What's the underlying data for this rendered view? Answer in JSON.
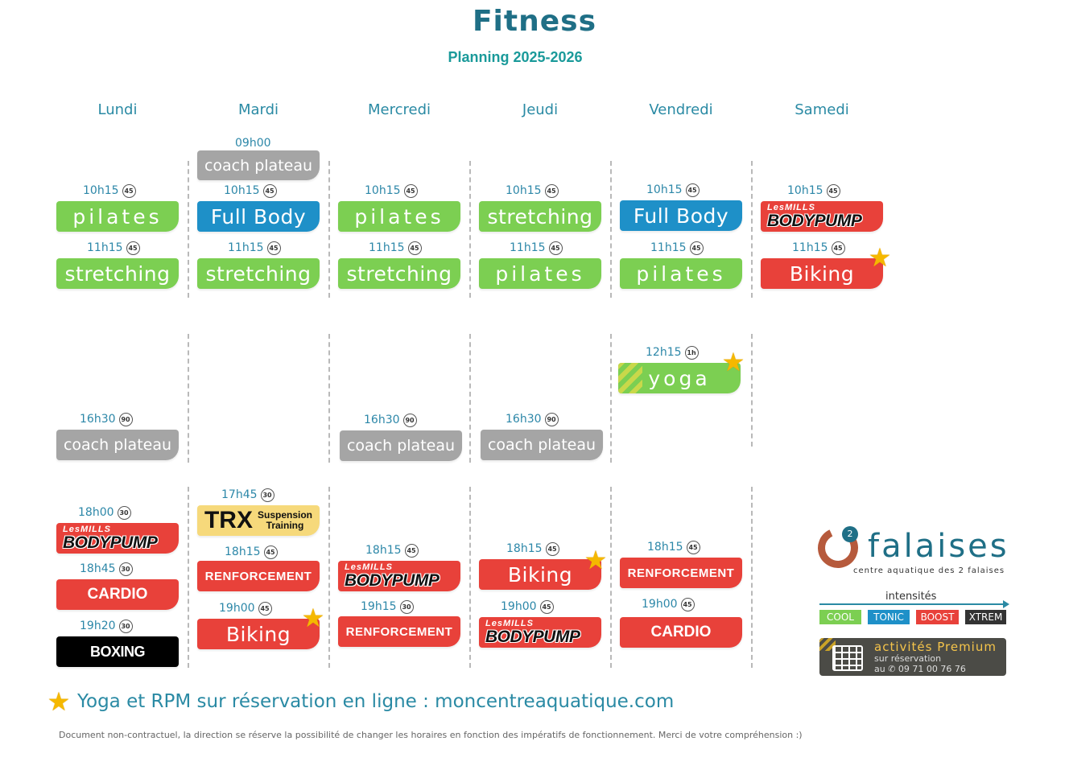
{
  "header": {
    "title": "Fitness",
    "subtitle": "Planning 2025-2026"
  },
  "days": [
    "Lundi",
    "Mardi",
    "Mercredi",
    "Jeudi",
    "Vendredi",
    "Samedi"
  ],
  "colors": {
    "cool": "#7ccf52",
    "tonic": "#1e90c8",
    "boost": "#e8413a",
    "xtrem": "#333333",
    "grey": "#a5a5a5",
    "accent": "#1f6f86",
    "star": "#f5b800"
  },
  "sessions": {
    "lun_1015": {
      "time": "10h15",
      "dur": "45",
      "name": "pilates"
    },
    "lun_1115": {
      "time": "11h15",
      "dur": "45",
      "name": "stretching"
    },
    "lun_1630": {
      "time": "16h30",
      "dur": "90",
      "name": "coach plateau"
    },
    "lun_1800": {
      "time": "18h00",
      "dur": "30",
      "brand": "LesMILLS",
      "name": "BODYPUMP"
    },
    "lun_1845": {
      "time": "18h45",
      "dur": "30",
      "name": "CARDIO"
    },
    "lun_1920": {
      "time": "19h20",
      "dur": "30",
      "name": "BOXING"
    },
    "mar_0900": {
      "time": "09h00",
      "name": "coach plateau"
    },
    "mar_1015": {
      "time": "10h15",
      "dur": "45",
      "name": "Full Body"
    },
    "mar_1115": {
      "time": "11h15",
      "dur": "45",
      "name": "stretching"
    },
    "mar_1745": {
      "time": "17h45",
      "dur": "30",
      "name": "TRX",
      "sub1": "Suspension",
      "sub2": "Training"
    },
    "mar_1815": {
      "time": "18h15",
      "dur": "45",
      "name": "RENFORCEMENT"
    },
    "mar_1900": {
      "time": "19h00",
      "dur": "45",
      "name": "Biking"
    },
    "mer_1015": {
      "time": "10h15",
      "dur": "45",
      "name": "pilates"
    },
    "mer_1115": {
      "time": "11h15",
      "dur": "45",
      "name": "stretching"
    },
    "mer_1630": {
      "time": "16h30",
      "dur": "90",
      "name": "coach plateau"
    },
    "mer_1815": {
      "time": "18h15",
      "dur": "45",
      "brand": "LesMILLS",
      "name": "BODYPUMP"
    },
    "mer_1915": {
      "time": "19h15",
      "dur": "30",
      "name": "RENFORCEMENT"
    },
    "jeu_1015": {
      "time": "10h15",
      "dur": "45",
      "name": "stretching"
    },
    "jeu_1115": {
      "time": "11h15",
      "dur": "45",
      "name": "pilates"
    },
    "jeu_1630": {
      "time": "16h30",
      "dur": "90",
      "name": "coach plateau"
    },
    "jeu_1815": {
      "time": "18h15",
      "dur": "45",
      "name": "Biking"
    },
    "jeu_1900": {
      "time": "19h00",
      "dur": "45",
      "brand": "LesMILLS",
      "name": "BODYPUMP"
    },
    "ven_1015": {
      "time": "10h15",
      "dur": "45",
      "name": "Full Body"
    },
    "ven_1115": {
      "time": "11h15",
      "dur": "45",
      "name": "pilates"
    },
    "ven_1215": {
      "time": "12h15",
      "dur": "1h",
      "name": "yoga"
    },
    "ven_1815": {
      "time": "18h15",
      "dur": "45",
      "name": "RENFORCEMENT"
    },
    "ven_1900": {
      "time": "19h00",
      "dur": "45",
      "name": "CARDIO"
    },
    "sam_1015": {
      "time": "10h15",
      "dur": "45",
      "brand": "LesMILLS",
      "name": "BODYPUMP"
    },
    "sam_1115": {
      "time": "11h15",
      "dur": "45",
      "name": "Biking"
    }
  },
  "footer": {
    "note": "Yoga et RPM sur réservation en ligne : moncentreaquatique.com",
    "disclaimer": "Document non-contractuel, la direction se réserve la possibilité de changer les horaires en fonction des impératifs de fonctionnement. Merci de votre compréhension :)"
  },
  "legend": {
    "brand_name": "falaises",
    "brand_badge": "2",
    "brand_tagline": "centre aquatique des 2 falaises",
    "intensities_label": "intensités",
    "levels": [
      "COOL",
      "TONIC",
      "BOOST",
      "XTREM"
    ],
    "premium_title": "activités Premium",
    "premium_line1": "sur réservation",
    "premium_line2": "au ✆ 09 71 00 76 76"
  }
}
